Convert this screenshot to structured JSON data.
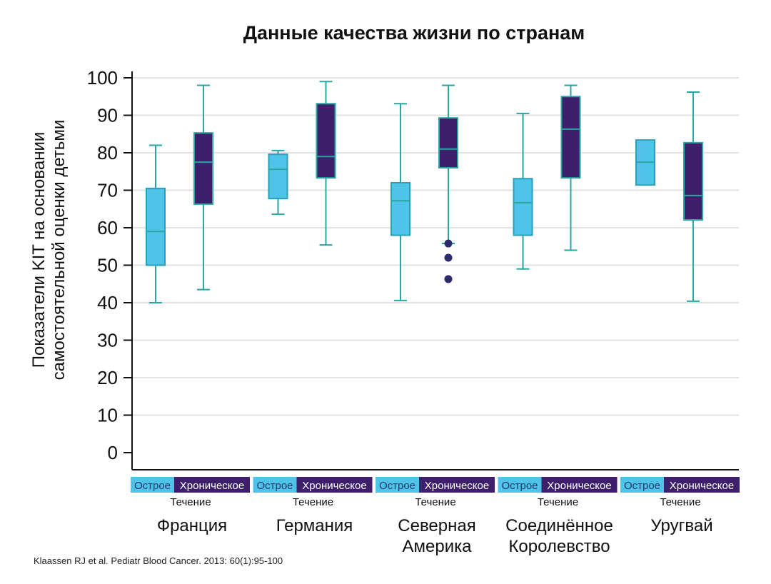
{
  "chart_data": {
    "type": "boxplot",
    "title": "Данные качества жизни по странам",
    "ylabel": "Показатели KIT на основании самостоятельной оценки детьми",
    "ylabel_lines": [
      "Показатели KIT на основании",
      "самостоятельной оценки детьми"
    ],
    "xlabel": "Течение",
    "ylim": [
      0,
      100
    ],
    "yticks": [
      0,
      10,
      20,
      30,
      40,
      50,
      60,
      70,
      80,
      90,
      100
    ],
    "grid": true,
    "series_labels": [
      "Острое",
      "Хроническое"
    ],
    "colors": {
      "acute": "#4fc3e8",
      "chronic": "#3d1f6b",
      "whisker": "#2aa6a0",
      "outlier": "#2b2a6b"
    },
    "groups": [
      {
        "country": [
          "Франция"
        ],
        "boxes": [
          {
            "series": "Острое",
            "min": 40,
            "q1": 50,
            "median": 59,
            "q3": 70.5,
            "max": 82,
            "outliers": []
          },
          {
            "series": "Хроническое",
            "min": 43.5,
            "q1": 66.3,
            "median": 77.5,
            "q3": 85.3,
            "max": 98,
            "outliers": []
          }
        ]
      },
      {
        "country": [
          "Германия"
        ],
        "boxes": [
          {
            "series": "Острое",
            "min": 63.6,
            "q1": 67.8,
            "median": 75.6,
            "q3": 79.6,
            "max": 80.6,
            "outliers": []
          },
          {
            "series": "Хроническое",
            "min": 55.4,
            "q1": 73.3,
            "median": 79,
            "q3": 93.1,
            "max": 99,
            "outliers": []
          }
        ]
      },
      {
        "country": [
          "Северная",
          "Америка"
        ],
        "boxes": [
          {
            "series": "Острое",
            "min": 40.6,
            "q1": 58,
            "median": 67.2,
            "q3": 72,
            "max": 93.1,
            "outliers": []
          },
          {
            "series": "Хроническое",
            "min": 55.8,
            "q1": 76,
            "median": 81,
            "q3": 89.3,
            "max": 98,
            "outliers": [
              55.8,
              52,
              46.3
            ]
          }
        ]
      },
      {
        "country": [
          "Соединённое",
          "Королевство"
        ],
        "boxes": [
          {
            "series": "Острое",
            "min": 49,
            "q1": 58,
            "median": 66.7,
            "q3": 73.1,
            "max": 90.5,
            "outliers": []
          },
          {
            "series": "Хроническое",
            "min": 54,
            "q1": 73.3,
            "median": 86.3,
            "q3": 95,
            "max": 98,
            "outliers": []
          }
        ]
      },
      {
        "country": [
          "Уругвай"
        ],
        "boxes": [
          {
            "series": "Острое",
            "min": 71.4,
            "q1": 71.4,
            "median": 77.5,
            "q3": 83.4,
            "max": 83.4,
            "outliers": []
          },
          {
            "series": "Хроническое",
            "min": 40.4,
            "q1": 62.1,
            "median": 68.6,
            "q3": 82.7,
            "max": 96.2,
            "outliers": []
          }
        ]
      }
    ]
  },
  "footnote": "Klaassen RJ et al. Pediatr Blood Cancer. 2013: 60(1):95-100"
}
